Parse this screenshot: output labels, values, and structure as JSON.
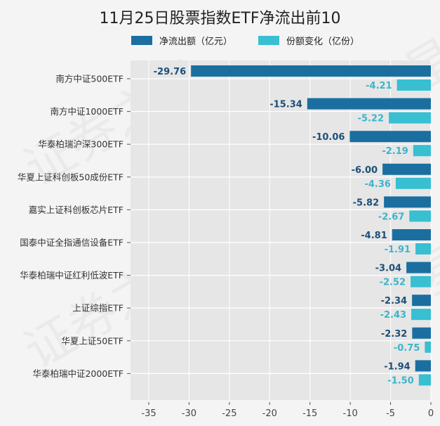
{
  "colors": {
    "net_outflow": "#1a6fa0",
    "share_change": "#38bfd2",
    "plot_bg": "#e6e6e6"
  },
  "watermark": "证券之星",
  "chart_data": {
    "type": "bar",
    "orientation": "horizontal",
    "title": "11月25日股票指数ETF净流出前10",
    "categories": [
      "南方中证500ETF",
      "南方中证1000ETF",
      "华泰柏瑞沪深300ETF",
      "华夏上证科创板50成份ETF",
      "嘉实上证科创板芯片ETF",
      "国泰中证全指通信设备ETF",
      "华泰柏瑞中证红利低波ETF",
      "上证综指ETF",
      "华夏上证50ETF",
      "华泰柏瑞中证2000ETF"
    ],
    "series": [
      {
        "name": "净流出额（亿元）",
        "values": [
          -29.76,
          -15.34,
          -10.06,
          -6.0,
          -5.82,
          -4.81,
          -3.04,
          -2.34,
          -2.32,
          -1.94
        ]
      },
      {
        "name": "份额变化（亿份）",
        "values": [
          -4.21,
          -5.22,
          -2.19,
          -4.36,
          -2.67,
          -1.91,
          -2.52,
          -2.43,
          -0.75,
          -1.5
        ]
      }
    ],
    "xlim": [
      -37.3,
      0
    ],
    "xticks": [
      "-35",
      "-30",
      "-25",
      "-20",
      "-15",
      "-10",
      "-5",
      "0"
    ],
    "grid": true,
    "legend_position": "top",
    "data_labels": true
  }
}
